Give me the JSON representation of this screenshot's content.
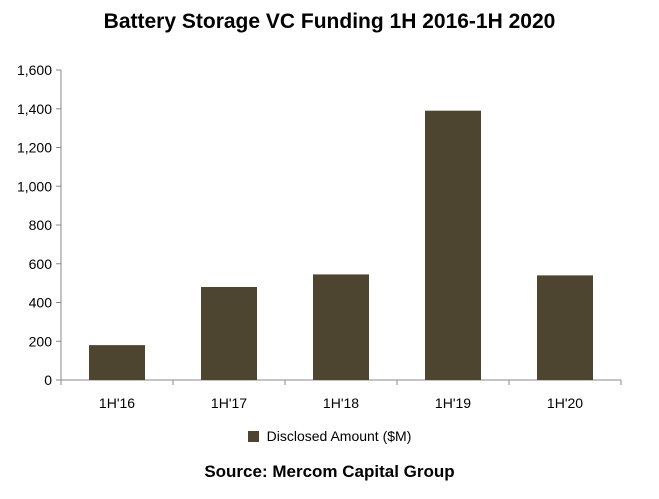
{
  "chart_data": {
    "type": "bar",
    "title": "Battery Storage VC Funding 1H 2016-1H 2020",
    "categories": [
      "1H'16",
      "1H'17",
      "1H'18",
      "1H'19",
      "1H'20"
    ],
    "series": [
      {
        "name": "Disclosed Amount ($M)",
        "values": [
          180,
          480,
          545,
          1390,
          540
        ]
      }
    ],
    "yticks": [
      "0",
      "200",
      "400",
      "600",
      "800",
      "1,000",
      "1,200",
      "1,400",
      "1,600"
    ],
    "ylim": [
      0,
      1600
    ],
    "xlabel": "",
    "ylabel": "",
    "grid": false,
    "legend_position": "bottom",
    "bar_color": "#4d4530",
    "source": "Source: Mercom Capital Group"
  }
}
